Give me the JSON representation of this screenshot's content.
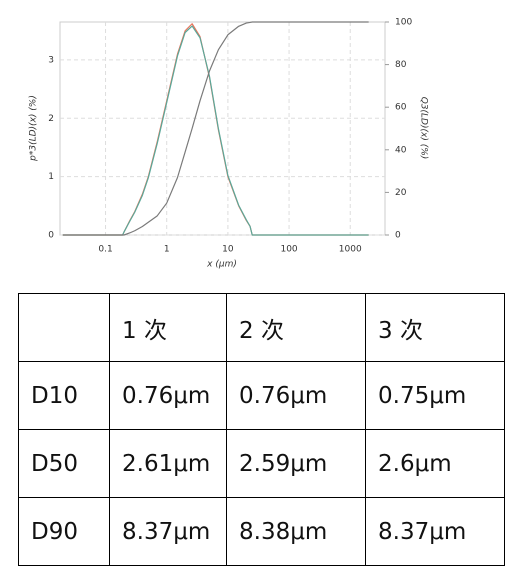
{
  "chart_data": {
    "type": "line",
    "x_label": "x (µm)",
    "y_label": "p*3(LD)(x) (%)",
    "y2_label": "Q3(LD)(x) (%)",
    "log_x": true,
    "grid": true,
    "xlim": [
      0.018,
      3700
    ],
    "xticks": [
      0.1,
      1,
      10,
      100,
      1000
    ],
    "ylim": [
      0,
      3.65
    ],
    "yticks": [
      0,
      1,
      2,
      3
    ],
    "y2lim": [
      0,
      100
    ],
    "y2ticks": [
      0,
      20,
      40,
      60,
      80,
      100
    ],
    "x": [
      0.02,
      0.19,
      0.2,
      0.25,
      0.3,
      0.4,
      0.5,
      0.7,
      1,
      1.5,
      2,
      2.6,
      3.5,
      5,
      7,
      10,
      15,
      20,
      23,
      25,
      2000
    ],
    "series": [
      {
        "color": "#e8735a",
        "values": [
          0,
          0,
          0.05,
          0.25,
          0.4,
          0.7,
          1.0,
          1.6,
          2.3,
          3.1,
          3.5,
          3.62,
          3.4,
          2.7,
          1.8,
          1.0,
          0.5,
          0.25,
          0.15,
          0,
          0
        ]
      },
      {
        "color": "#5aa89a",
        "values": [
          0,
          0,
          0.05,
          0.24,
          0.39,
          0.68,
          0.98,
          1.57,
          2.27,
          3.07,
          3.47,
          3.58,
          3.38,
          2.72,
          1.82,
          1.02,
          0.51,
          0.26,
          0.15,
          0,
          0
        ]
      },
      {
        "color": "#7a7a7a",
        "axis": "y2",
        "values": [
          0,
          0,
          0,
          1,
          2,
          4,
          6,
          9,
          15,
          27,
          39,
          50,
          63,
          77,
          87,
          94,
          98,
          99.5,
          99.8,
          100,
          100
        ]
      }
    ]
  },
  "table": {
    "columns": [
      "1 次",
      "2 次",
      "3 次"
    ],
    "rows": [
      [
        "D10",
        "0.76μm",
        "0.76μm",
        "0.75μm"
      ],
      [
        "D50",
        "2.61μm",
        "2.59μm",
        "2.6μm"
      ],
      [
        "D90",
        "8.37μm",
        "8.38μm",
        "8.37μm"
      ]
    ]
  }
}
